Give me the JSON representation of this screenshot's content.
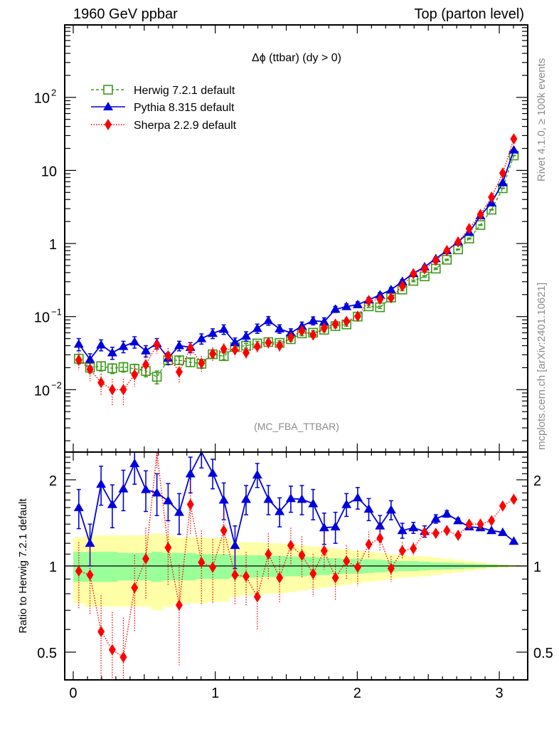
{
  "header": {
    "left": "1960 GeV ppbar",
    "right": "Top (parton level)"
  },
  "side_labels": {
    "rivet": "Rivet 4.1.0, ≥ 100k events",
    "mcplots": "mcplots.cern.ch [arXiv:2401.10621]"
  },
  "chart_data": [
    {
      "type": "line",
      "panel": "main",
      "title": "Δϕ (ttbar) (dy > 0)",
      "analysis_label": "(MC_FBA_TTBAR)",
      "xlabel": "",
      "ylabel": "",
      "xlim": [
        -0.06,
        3.2
      ],
      "ylim": [
        0.0014,
        980
      ],
      "yscale": "log",
      "x_ticks": [
        "0",
        "1",
        "2",
        "3"
      ],
      "y_ticks": [
        {
          "value": 0.01,
          "label": "10",
          "exp": "−2"
        },
        {
          "value": 0.1,
          "label": "10",
          "exp": "−1"
        },
        {
          "value": 1,
          "label": "1",
          "exp": ""
        },
        {
          "value": 10,
          "label": "10",
          "exp": ""
        },
        {
          "value": 100,
          "label": "10",
          "exp": "2"
        }
      ],
      "legend_position": "top-left",
      "x": [
        0.039,
        0.118,
        0.196,
        0.275,
        0.353,
        0.432,
        0.511,
        0.589,
        0.668,
        0.746,
        0.825,
        0.903,
        0.982,
        1.06,
        1.139,
        1.217,
        1.296,
        1.374,
        1.453,
        1.532,
        1.61,
        1.689,
        1.767,
        1.846,
        1.924,
        2.003,
        2.081,
        2.16,
        2.238,
        2.317,
        2.395,
        2.474,
        2.553,
        2.631,
        2.71,
        2.788,
        2.867,
        2.945,
        3.024,
        3.102
      ],
      "series": [
        {
          "name": "Herwig 7.2.1 default",
          "color": "#3a9a1a",
          "marker": "open-square",
          "line": "dashed",
          "values": [
            0.0265,
            0.02,
            0.021,
            0.0196,
            0.0204,
            0.0193,
            0.018,
            0.015,
            0.0253,
            0.0253,
            0.0237,
            0.0226,
            0.0305,
            0.0287,
            0.0382,
            0.04,
            0.0429,
            0.0448,
            0.0437,
            0.049,
            0.0588,
            0.0602,
            0.066,
            0.074,
            0.078,
            0.1,
            0.138,
            0.134,
            0.182,
            0.234,
            0.308,
            0.355,
            0.453,
            0.6,
            0.83,
            1.17,
            1.79,
            2.9,
            5.7,
            16.0
          ],
          "errors": [
            0.004,
            0.003,
            0.003,
            0.003,
            0.003,
            0.003,
            0.003,
            0.003,
            0.003,
            0.003,
            0.003,
            0.003,
            0.003,
            0.003,
            0.003,
            0.003,
            0.003,
            0.003,
            0.003,
            0.003,
            0.004,
            0.004,
            0.004,
            0.004,
            0.004,
            0.004,
            0.005,
            0.005,
            0.006,
            0.007,
            0.008,
            0.008,
            0.009,
            0.01,
            0.01,
            0.02,
            0.02,
            0.03,
            0.05,
            0.1
          ]
        },
        {
          "name": "Pythia 8.315 default",
          "color": "#0000dd",
          "marker": "filled-triangle",
          "line": "solid",
          "values": [
            0.042,
            0.026,
            0.041,
            0.032,
            0.039,
            0.045,
            0.034,
            0.043,
            0.027,
            0.04,
            0.038,
            0.05,
            0.059,
            0.067,
            0.044,
            0.054,
            0.069,
            0.088,
            0.068,
            0.06,
            0.074,
            0.088,
            0.085,
            0.126,
            0.137,
            0.146,
            0.169,
            0.198,
            0.233,
            0.302,
            0.39,
            0.479,
            0.62,
            0.8,
            1.06,
            1.42,
            2.4,
            3.6,
            6.8,
            19.0
          ],
          "errors": [
            0.008,
            0.005,
            0.007,
            0.006,
            0.007,
            0.008,
            0.006,
            0.007,
            0.005,
            0.006,
            0.006,
            0.008,
            0.009,
            0.01,
            0.007,
            0.008,
            0.01,
            0.012,
            0.009,
            0.008,
            0.01,
            0.011,
            0.011,
            0.012,
            0.012,
            0.013,
            0.014,
            0.015,
            0.016,
            0.018,
            0.02,
            0.02,
            0.03,
            0.03,
            0.04,
            0.05,
            0.06,
            0.08,
            0.1,
            0.2
          ]
        },
        {
          "name": "Sherpa 2.2.9 default",
          "color": "#ff0000",
          "marker": "filled-diamond",
          "line": "dotted",
          "values": [
            0.0255,
            0.019,
            0.0125,
            0.01,
            0.01,
            0.016,
            0.022,
            0.041,
            0.029,
            0.0175,
            0.037,
            0.023,
            0.031,
            0.036,
            0.035,
            0.032,
            0.039,
            0.044,
            0.04,
            0.052,
            0.064,
            0.056,
            0.07,
            0.079,
            0.086,
            0.101,
            0.165,
            0.172,
            0.181,
            0.262,
            0.386,
            0.45,
            0.588,
            0.8,
            1.05,
            1.6,
            2.5,
            4.3,
            9.2,
            27.0
          ],
          "errors": [
            0.007,
            0.006,
            0.004,
            0.004,
            0.004,
            0.005,
            0.006,
            0.01,
            0.008,
            0.005,
            0.008,
            0.006,
            0.007,
            0.007,
            0.007,
            0.006,
            0.007,
            0.008,
            0.007,
            0.008,
            0.009,
            0.008,
            0.009,
            0.009,
            0.01,
            0.01,
            0.013,
            0.013,
            0.014,
            0.016,
            0.02,
            0.02,
            0.03,
            0.03,
            0.04,
            0.05,
            0.06,
            0.09,
            0.15,
            0.3
          ]
        }
      ]
    },
    {
      "type": "line",
      "panel": "ratio",
      "ylabel": "Ratio to Herwig 7.2.1 default",
      "ylim": [
        0.4,
        2.5
      ],
      "yscale": "log",
      "y_ticks": [
        {
          "value": 0.5,
          "label": "0.5"
        },
        {
          "value": 1,
          "label": "1"
        },
        {
          "value": 2,
          "label": "2"
        }
      ],
      "band_inner_halfwidth": [
        0.12,
        0.12,
        0.12,
        0.12,
        0.11,
        0.11,
        0.11,
        0.12,
        0.11,
        0.11,
        0.11,
        0.1,
        0.1,
        0.1,
        0.09,
        0.09,
        0.09,
        0.085,
        0.085,
        0.08,
        0.08,
        0.075,
        0.07,
        0.065,
        0.06,
        0.06,
        0.055,
        0.05,
        0.045,
        0.04,
        0.04,
        0.035,
        0.03,
        0.028,
        0.024,
        0.02,
        0.016,
        0.012,
        0.008,
        0.004
      ],
      "band_outer_halfwidth": [
        0.26,
        0.28,
        0.28,
        0.28,
        0.28,
        0.28,
        0.28,
        0.3,
        0.28,
        0.26,
        0.26,
        0.26,
        0.25,
        0.25,
        0.22,
        0.21,
        0.21,
        0.2,
        0.2,
        0.19,
        0.18,
        0.17,
        0.16,
        0.15,
        0.14,
        0.13,
        0.12,
        0.11,
        0.1,
        0.09,
        0.085,
        0.08,
        0.07,
        0.06,
        0.05,
        0.04,
        0.03,
        0.02,
        0.015,
        0.008
      ],
      "series": [
        {
          "name": "Pythia 8.315 default",
          "color": "#0000dd",
          "values": [
            1.6,
            1.2,
            1.93,
            1.64,
            1.86,
            2.28,
            1.85,
            1.8,
            1.69,
            1.54,
            2.1,
            2.55,
            2.11,
            1.7,
            1.18,
            1.71,
            2.08,
            1.71,
            1.55,
            1.72,
            1.71,
            1.65,
            1.36,
            1.37,
            1.64,
            1.73,
            1.58,
            1.38,
            1.57,
            1.33,
            1.36,
            1.32,
            1.46,
            1.52,
            1.44,
            1.37,
            1.36,
            1.33,
            1.31,
            1.22
          ],
          "errors": [
            0.25,
            0.2,
            0.3,
            0.28,
            0.3,
            0.35,
            0.3,
            0.3,
            0.25,
            0.25,
            0.3,
            0.35,
            0.25,
            0.25,
            0.2,
            0.2,
            0.2,
            0.2,
            0.18,
            0.18,
            0.2,
            0.2,
            0.17,
            0.17,
            0.15,
            0.15,
            0.14,
            0.12,
            0.12,
            0.08,
            0.06,
            0.06,
            0.05,
            0.04,
            0.03,
            0.02,
            0.01,
            0.01,
            0.01,
            0.01
          ]
        },
        {
          "name": "Sherpa 2.2.9 default",
          "color": "#ff0000",
          "values": [
            0.96,
            0.93,
            0.59,
            0.51,
            0.48,
            0.84,
            1.06,
            2.6,
            1.16,
            0.73,
            1.64,
            1.03,
            0.99,
            1.33,
            0.93,
            0.92,
            0.78,
            1.1,
            0.91,
            1.18,
            1.09,
            0.94,
            1.13,
            0.91,
            1.04,
            0.99,
            1.19,
            1.25,
            0.98,
            1.13,
            1.15,
            1.31,
            1.3,
            1.33,
            1.28,
            1.4,
            1.4,
            1.44,
            1.62,
            1.71
          ],
          "errors": [
            0.25,
            0.25,
            0.2,
            0.18,
            0.18,
            0.25,
            0.3,
            0.4,
            0.3,
            0.28,
            0.35,
            0.3,
            0.25,
            0.25,
            0.2,
            0.2,
            0.18,
            0.2,
            0.17,
            0.18,
            0.18,
            0.16,
            0.16,
            0.15,
            0.14,
            0.14,
            0.13,
            0.12,
            0.1,
            0.08,
            0.06,
            0.05,
            0.04,
            0.04,
            0.03,
            0.03,
            0.02,
            0.02,
            0.02,
            0.01
          ]
        }
      ]
    }
  ]
}
